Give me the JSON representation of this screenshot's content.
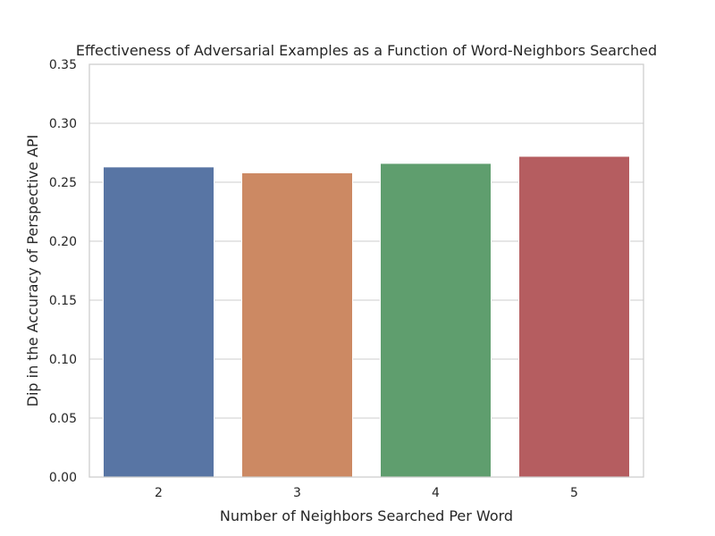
{
  "chart_data": {
    "type": "bar",
    "title": "Effectiveness of Adversarial Examples as a Function of Word-Neighbors Searched",
    "xlabel": "Number of Neighbors Searched Per Word",
    "ylabel": "Dip in the Accuracy of Perspective API",
    "categories": [
      "2",
      "3",
      "4",
      "5"
    ],
    "values": [
      0.263,
      0.258,
      0.266,
      0.272
    ],
    "colors": [
      "#5875a4",
      "#cc8963",
      "#5f9e6e",
      "#b55d60"
    ],
    "ylim": [
      0,
      0.35
    ],
    "yticks": [
      0.0,
      0.05,
      0.1,
      0.15,
      0.2,
      0.25,
      0.3,
      0.35
    ],
    "ytick_labels": [
      "0.00",
      "0.05",
      "0.10",
      "0.15",
      "0.20",
      "0.25",
      "0.30",
      "0.35"
    ],
    "grid": true,
    "grid_axis": "y",
    "legend": "none"
  }
}
